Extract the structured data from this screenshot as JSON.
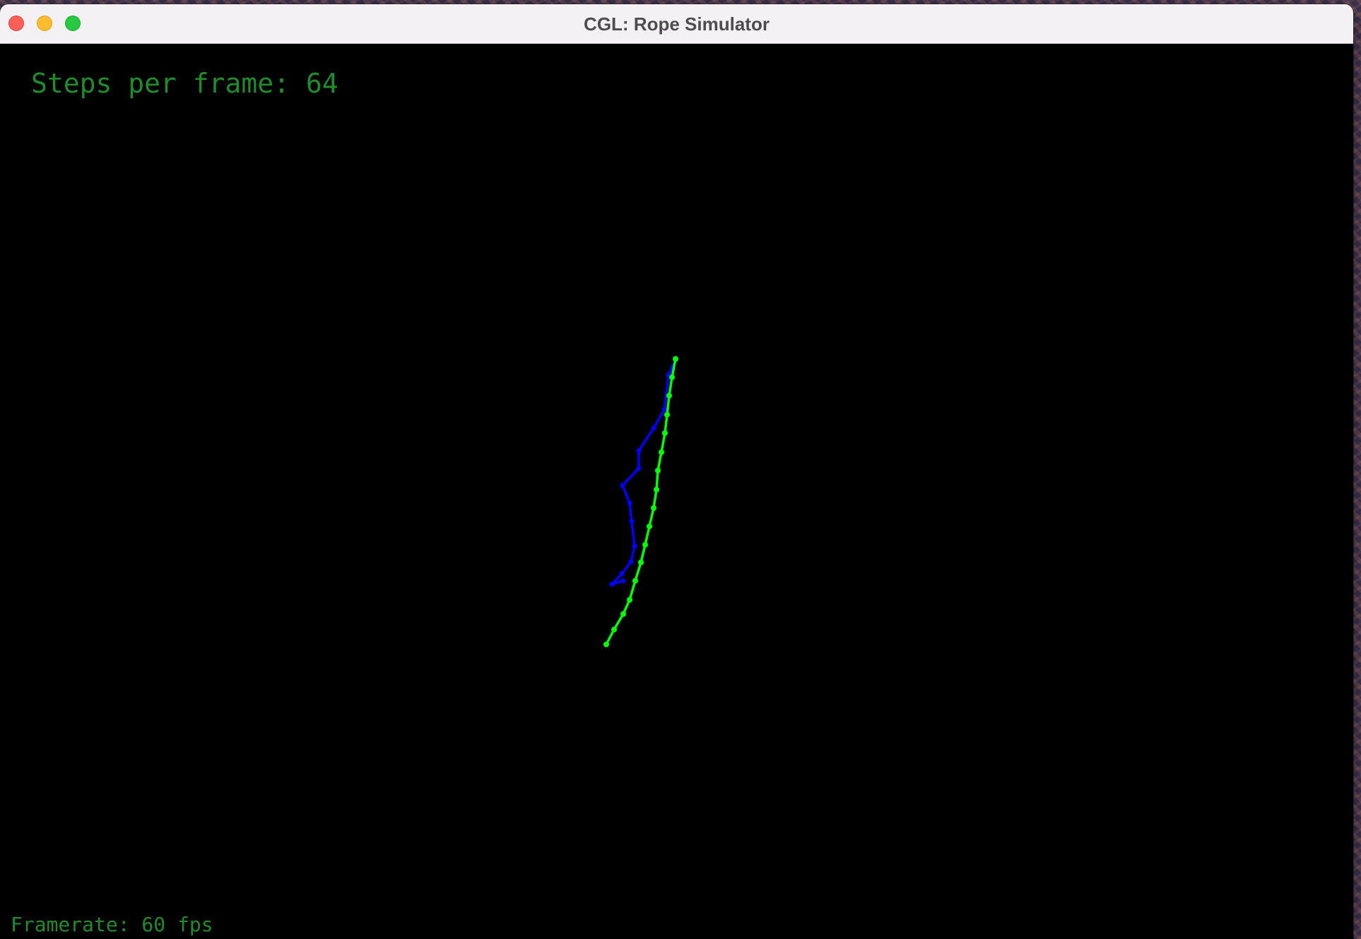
{
  "window": {
    "title": "CGL: Rope Simulator"
  },
  "overlay": {
    "steps_per_frame": "Steps per frame: 64",
    "framerate": "Framerate: 60 fps"
  },
  "colors": {
    "text_green": "#1e8c2a",
    "rope_green": "#00ff00",
    "rope_blue": "#0000ff",
    "background": "#000000"
  }
}
